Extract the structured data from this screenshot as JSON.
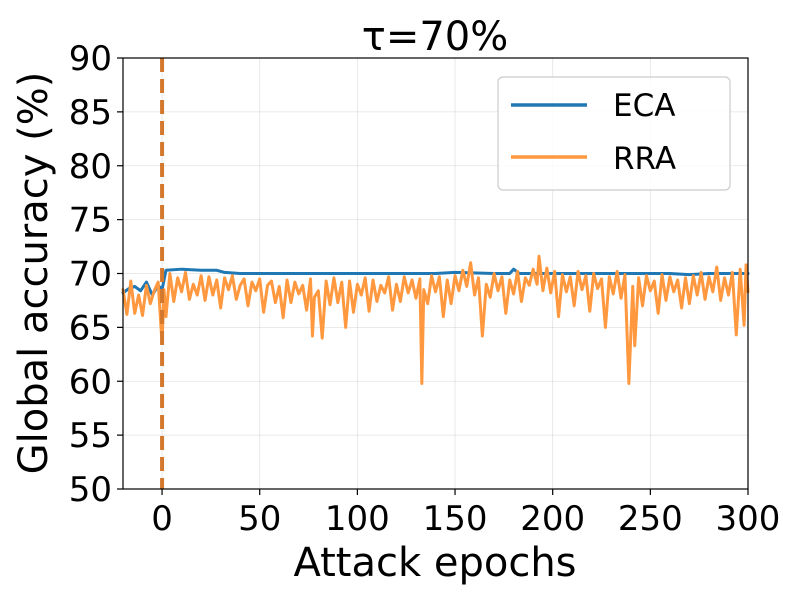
{
  "chart_data": {
    "type": "line",
    "title": "τ=70%",
    "xlabel": "Attack epochs",
    "ylabel": "Global accuracy (%)",
    "xlim": [
      -20,
      300
    ],
    "ylim": [
      50,
      90
    ],
    "xticks": [
      0,
      50,
      100,
      150,
      200,
      250,
      300
    ],
    "yticks": [
      50,
      55,
      60,
      65,
      70,
      75,
      80,
      85,
      90
    ],
    "grid": true,
    "legend_position": "upper right",
    "vline": {
      "x": 0,
      "style": "dashed",
      "color": "#d4782e"
    },
    "series": [
      {
        "name": "ECA",
        "color": "#1f77b4",
        "points": [
          [
            -20,
            68.2
          ],
          [
            -17,
            68.6
          ],
          [
            -14,
            68.8
          ],
          [
            -11,
            68.4
          ],
          [
            -8,
            69.2
          ],
          [
            -5,
            68.0
          ],
          [
            -2,
            68.9
          ],
          [
            0,
            68.5
          ],
          [
            2,
            70.3
          ],
          [
            10,
            70.4
          ],
          [
            20,
            70.3
          ],
          [
            28,
            70.3
          ],
          [
            32,
            70.1
          ],
          [
            40,
            70.0
          ],
          [
            60,
            70.0
          ],
          [
            80,
            70.0
          ],
          [
            100,
            70.0
          ],
          [
            120,
            70.0
          ],
          [
            140,
            70.0
          ],
          [
            150,
            70.1
          ],
          [
            170,
            70.0
          ],
          [
            178,
            70.0
          ],
          [
            180,
            70.4
          ],
          [
            183,
            70.0
          ],
          [
            200,
            70.0
          ],
          [
            220,
            70.0
          ],
          [
            240,
            70.0
          ],
          [
            260,
            70.0
          ],
          [
            270,
            69.9
          ],
          [
            280,
            70.0
          ],
          [
            290,
            70.0
          ],
          [
            300,
            70.0
          ]
        ]
      },
      {
        "name": "RRA",
        "color": "#ff983e",
        "points": [
          [
            -20,
            68.5
          ],
          [
            -18,
            66.2
          ],
          [
            -16,
            69.3
          ],
          [
            -14,
            66.3
          ],
          [
            -12,
            68.0
          ],
          [
            -10,
            66.1
          ],
          [
            -8,
            68.9
          ],
          [
            -6,
            67.2
          ],
          [
            -4,
            68.4
          ],
          [
            -2,
            69.2
          ],
          [
            0,
            63.5
          ],
          [
            1,
            68.5
          ],
          [
            2,
            66.0
          ],
          [
            4,
            70.0
          ],
          [
            6,
            67.4
          ],
          [
            8,
            69.6
          ],
          [
            10,
            68.3
          ],
          [
            12,
            70.1
          ],
          [
            14,
            67.6
          ],
          [
            16,
            69.0
          ],
          [
            18,
            68.0
          ],
          [
            20,
            69.8
          ],
          [
            22,
            67.5
          ],
          [
            24,
            69.7
          ],
          [
            26,
            68.0
          ],
          [
            28,
            69.4
          ],
          [
            30,
            66.8
          ],
          [
            32,
            69.6
          ],
          [
            34,
            68.5
          ],
          [
            36,
            69.8
          ],
          [
            38,
            67.6
          ],
          [
            40,
            68.9
          ],
          [
            42,
            69.5
          ],
          [
            44,
            67.0
          ],
          [
            46,
            69.2
          ],
          [
            48,
            68.4
          ],
          [
            50,
            69.5
          ],
          [
            52,
            66.4
          ],
          [
            54,
            68.9
          ],
          [
            56,
            69.3
          ],
          [
            58,
            67.3
          ],
          [
            60,
            68.8
          ],
          [
            62,
            65.9
          ],
          [
            64,
            69.4
          ],
          [
            66,
            67.3
          ],
          [
            68,
            69.2
          ],
          [
            70,
            68.1
          ],
          [
            72,
            68.9
          ],
          [
            74,
            66.6
          ],
          [
            76,
            69.5
          ],
          [
            77,
            64.2
          ],
          [
            78,
            67.8
          ],
          [
            80,
            68.4
          ],
          [
            82,
            64.0
          ],
          [
            84,
            69.3
          ],
          [
            86,
            67.1
          ],
          [
            88,
            69.6
          ],
          [
            90,
            67.3
          ],
          [
            92,
            69.2
          ],
          [
            94,
            65.0
          ],
          [
            96,
            69.3
          ],
          [
            98,
            66.4
          ],
          [
            100,
            69.0
          ],
          [
            102,
            68.0
          ],
          [
            104,
            69.6
          ],
          [
            106,
            66.5
          ],
          [
            108,
            69.4
          ],
          [
            110,
            67.4
          ],
          [
            112,
            68.9
          ],
          [
            114,
            68.2
          ],
          [
            116,
            69.7
          ],
          [
            118,
            66.6
          ],
          [
            120,
            69.0
          ],
          [
            122,
            67.4
          ],
          [
            124,
            69.7
          ],
          [
            126,
            68.2
          ],
          [
            128,
            69.4
          ],
          [
            130,
            67.7
          ],
          [
            132,
            69.5
          ],
          [
            133,
            59.8
          ],
          [
            134,
            68.5
          ],
          [
            136,
            67.2
          ],
          [
            138,
            69.8
          ],
          [
            140,
            68.3
          ],
          [
            142,
            69.7
          ],
          [
            144,
            66.0
          ],
          [
            146,
            69.4
          ],
          [
            148,
            67.2
          ],
          [
            150,
            69.8
          ],
          [
            152,
            68.4
          ],
          [
            154,
            70.3
          ],
          [
            156,
            68.8
          ],
          [
            158,
            71.0
          ],
          [
            160,
            68.0
          ],
          [
            162,
            69.6
          ],
          [
            164,
            64.2
          ],
          [
            166,
            69.0
          ],
          [
            168,
            67.8
          ],
          [
            170,
            70.0
          ],
          [
            172,
            68.4
          ],
          [
            174,
            69.7
          ],
          [
            176,
            66.3
          ],
          [
            178,
            69.4
          ],
          [
            180,
            68.1
          ],
          [
            182,
            70.2
          ],
          [
            184,
            67.4
          ],
          [
            186,
            69.6
          ],
          [
            188,
            68.9
          ],
          [
            190,
            70.4
          ],
          [
            192,
            69.0
          ],
          [
            193,
            71.6
          ],
          [
            195,
            68.4
          ],
          [
            197,
            70.5
          ],
          [
            199,
            68.2
          ],
          [
            201,
            70.2
          ],
          [
            203,
            66.0
          ],
          [
            205,
            69.9
          ],
          [
            207,
            68.3
          ],
          [
            209,
            69.7
          ],
          [
            211,
            67.0
          ],
          [
            213,
            70.2
          ],
          [
            215,
            68.5
          ],
          [
            217,
            69.8
          ],
          [
            219,
            66.5
          ],
          [
            221,
            70.0
          ],
          [
            223,
            68.6
          ],
          [
            225,
            69.5
          ],
          [
            227,
            65.0
          ],
          [
            229,
            69.7
          ],
          [
            231,
            68.1
          ],
          [
            233,
            70.2
          ],
          [
            235,
            67.7
          ],
          [
            237,
            69.9
          ],
          [
            239,
            59.8
          ],
          [
            241,
            68.8
          ],
          [
            242,
            63.3
          ],
          [
            244,
            69.6
          ],
          [
            246,
            67.0
          ],
          [
            248,
            69.8
          ],
          [
            250,
            68.4
          ],
          [
            252,
            69.3
          ],
          [
            254,
            66.3
          ],
          [
            256,
            69.9
          ],
          [
            258,
            67.5
          ],
          [
            260,
            69.7
          ],
          [
            262,
            68.3
          ],
          [
            264,
            69.4
          ],
          [
            266,
            66.8
          ],
          [
            268,
            69.6
          ],
          [
            270,
            67.2
          ],
          [
            272,
            69.8
          ],
          [
            274,
            68.0
          ],
          [
            276,
            70.1
          ],
          [
            278,
            67.6
          ],
          [
            280,
            69.7
          ],
          [
            282,
            68.3
          ],
          [
            284,
            70.6
          ],
          [
            286,
            67.5
          ],
          [
            288,
            69.6
          ],
          [
            290,
            68.0
          ],
          [
            292,
            70.1
          ],
          [
            294,
            64.3
          ],
          [
            296,
            70.4
          ],
          [
            298,
            65.2
          ],
          [
            299,
            70.8
          ],
          [
            300,
            68.3
          ]
        ]
      }
    ]
  }
}
